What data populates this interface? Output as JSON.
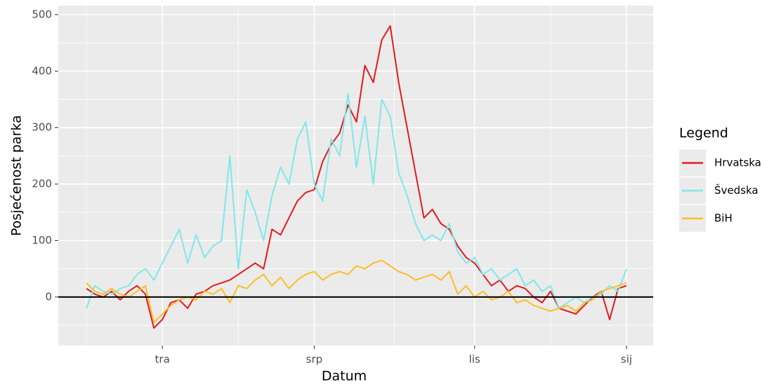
{
  "chart_data": {
    "type": "line",
    "x_label": "Datum",
    "y_label": "Posjećenost parka",
    "categories": [
      null,
      null,
      null,
      null,
      null,
      null,
      null,
      null,
      null,
      "tra",
      null,
      null,
      null,
      null,
      null,
      null,
      null,
      null,
      null,
      null,
      null,
      null,
      null,
      null,
      null,
      null,
      null,
      "srp",
      null,
      null,
      null,
      null,
      null,
      null,
      null,
      null,
      null,
      null,
      null,
      null,
      null,
      null,
      null,
      null,
      null,
      null,
      "lis",
      null,
      null,
      null,
      null,
      null,
      null,
      null,
      null,
      null,
      null,
      null,
      null,
      null,
      null,
      null,
      null,
      null,
      "sij"
    ],
    "series": [
      {
        "name": "Hrvatska",
        "color": "#e41a1c",
        "values": [
          15,
          5,
          0,
          10,
          -5,
          10,
          20,
          5,
          -55,
          -40,
          -10,
          -5,
          -20,
          5,
          10,
          20,
          25,
          30,
          40,
          50,
          60,
          50,
          120,
          110,
          140,
          170,
          185,
          190,
          240,
          270,
          290,
          340,
          310,
          410,
          380,
          455,
          480,
          380,
          300,
          220,
          140,
          155,
          130,
          120,
          90,
          70,
          60,
          40,
          20,
          30,
          10,
          20,
          15,
          0,
          -10,
          10,
          -20,
          -25,
          -30,
          -15,
          0,
          10,
          -40,
          15,
          20
        ]
      },
      {
        "name": "Švedska",
        "color": "#7fe8ea",
        "values": [
          -20,
          20,
          10,
          5,
          15,
          20,
          40,
          50,
          30,
          60,
          90,
          120,
          60,
          110,
          70,
          90,
          100,
          250,
          50,
          190,
          150,
          100,
          180,
          230,
          200,
          280,
          310,
          200,
          170,
          280,
          250,
          360,
          230,
          320,
          200,
          350,
          320,
          220,
          180,
          130,
          100,
          110,
          100,
          130,
          80,
          60,
          70,
          40,
          50,
          30,
          40,
          50,
          20,
          30,
          10,
          20,
          -20,
          -10,
          0,
          -10,
          0,
          5,
          20,
          10,
          50
        ]
      },
      {
        "name": "BiH",
        "color": "#fbbf24",
        "values": [
          25,
          10,
          5,
          15,
          5,
          0,
          10,
          20,
          -45,
          -30,
          -15,
          -5,
          0,
          -5,
          10,
          5,
          15,
          -10,
          20,
          15,
          30,
          40,
          20,
          35,
          15,
          30,
          40,
          45,
          30,
          40,
          45,
          40,
          55,
          50,
          60,
          65,
          55,
          45,
          40,
          30,
          35,
          40,
          30,
          45,
          5,
          20,
          0,
          10,
          -5,
          0,
          10,
          -10,
          -5,
          -15,
          -20,
          -25,
          -20,
          -15,
          -25,
          -10,
          -5,
          10,
          15,
          20,
          25
        ]
      }
    ],
    "ylim": [
      -86,
      516
    ],
    "yticks": [
      0,
      100,
      200,
      300,
      400,
      500
    ],
    "grid": true,
    "hline": 0,
    "legend_title": "Legend",
    "legend_position": "right"
  }
}
